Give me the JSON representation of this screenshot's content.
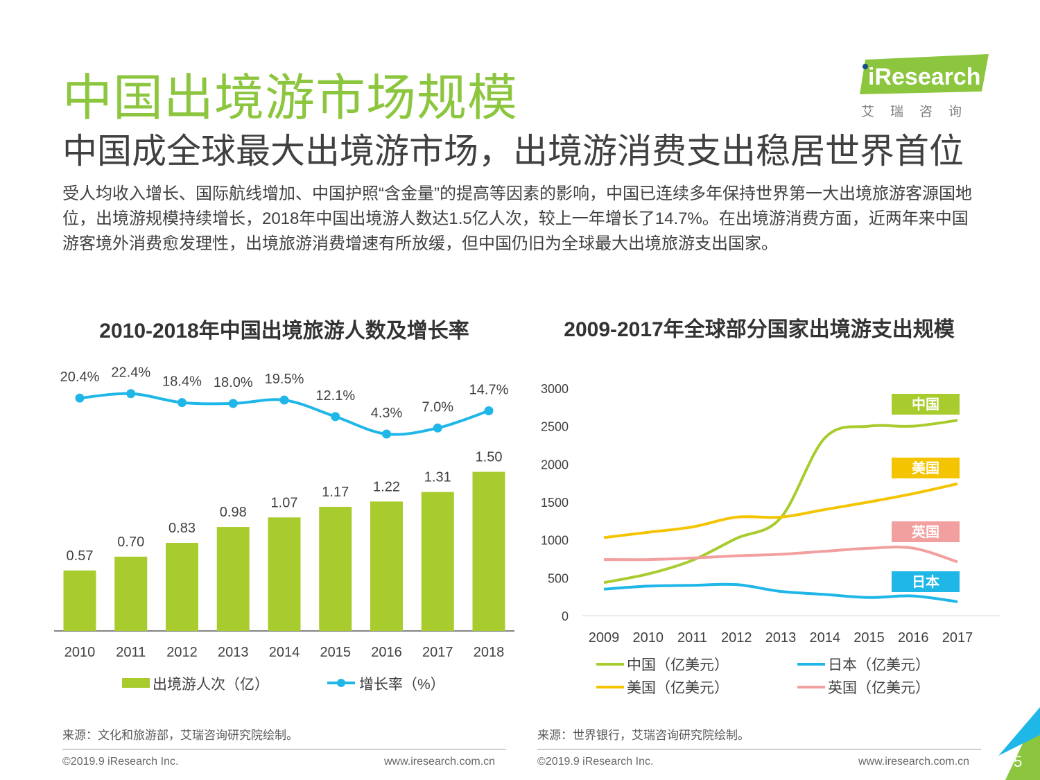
{
  "title": "中国出境游市场规模",
  "subtitle": "中国成全球最大出境游市场，出境游消费支出稳居世界首位",
  "intro": "受人均收入增长、国际航线增加、中国护照“含金量”的提高等因素的影响，中国已连续多年保持世界第一大出境旅游客源国地位，出境游规模持续增长，2018年中国出境游人数达1.5亿人次，较上一年增长了14.7%。在出境游消费方面，近两年来中国游客境外消费愈发理性，出境旅游消费增速有所放缓，但中国仍旧为全球最大出境旅游支出国家。",
  "logo": {
    "wordmark": "iResearch",
    "chinese": "艾瑞咨询"
  },
  "colors": {
    "brand_green": "#8cc63f",
    "bar_green": "#a8cc2e",
    "rate_blue": "#1fb6e8",
    "china": "#a8cc2e",
    "usa": "#f5c400",
    "uk": "#f29f9f",
    "japan": "#1fb6e8"
  },
  "chart_data": [
    {
      "type": "bar",
      "title": "2010-2018年中国出境旅游人数及增长率",
      "categories": [
        "2010",
        "2011",
        "2012",
        "2013",
        "2014",
        "2015",
        "2016",
        "2017",
        "2018"
      ],
      "series": [
        {
          "name": "出境游人次（亿）",
          "type": "bar",
          "values": [
            0.57,
            0.7,
            0.83,
            0.98,
            1.07,
            1.17,
            1.22,
            1.31,
            1.5
          ],
          "labels": [
            "0.57",
            "0.70",
            "0.83",
            "0.98",
            "1.07",
            "1.17",
            "1.22",
            "1.31",
            "1.50"
          ]
        },
        {
          "name": "增长率（%）",
          "type": "line",
          "values": [
            20.4,
            22.4,
            18.4,
            18.0,
            19.5,
            12.1,
            4.3,
            7.0,
            14.7
          ],
          "labels": [
            "20.4%",
            "22.4%",
            "18.4%",
            "18.0%",
            "19.5%",
            "12.1%",
            "4.3%",
            "7.0%",
            "14.7%"
          ]
        }
      ],
      "legend_position": "bottom"
    },
    {
      "type": "line",
      "title": "2009-2017年全球部分国家出境游支出规模",
      "x": [
        "2009",
        "2010",
        "2011",
        "2012",
        "2013",
        "2014",
        "2015",
        "2016",
        "2017"
      ],
      "yticks": [
        "0",
        "500",
        "1000",
        "1500",
        "2000",
        "2500",
        "3000"
      ],
      "ylim": [
        0,
        3000
      ],
      "series": [
        {
          "name": "中国（亿美元）",
          "tag": "中国",
          "values": [
            437,
            550,
            730,
            1020,
            1290,
            2345,
            2500,
            2500,
            2577
          ]
        },
        {
          "name": "日本（亿美元）",
          "tag": "日本",
          "values": [
            350,
            390,
            400,
            410,
            320,
            280,
            240,
            260,
            184
          ]
        },
        {
          "name": "美国（亿美元）",
          "tag": "美国",
          "values": [
            1030,
            1100,
            1170,
            1300,
            1300,
            1400,
            1500,
            1610,
            1740
          ]
        },
        {
          "name": "英国（亿美元）",
          "tag": "英国",
          "values": [
            740,
            740,
            760,
            790,
            810,
            850,
            890,
            890,
            710
          ]
        }
      ],
      "legend_position": "bottom",
      "grid": false
    }
  ],
  "source1": "来源：文化和旅游部，艾瑞咨询研究院绘制。",
  "source2": "来源：世界银行，艾瑞咨询研究院绘制。",
  "footer": {
    "copyright": "©2019.9 iResearch Inc.",
    "url": "www.iresearch.com.cn",
    "page": "5"
  }
}
